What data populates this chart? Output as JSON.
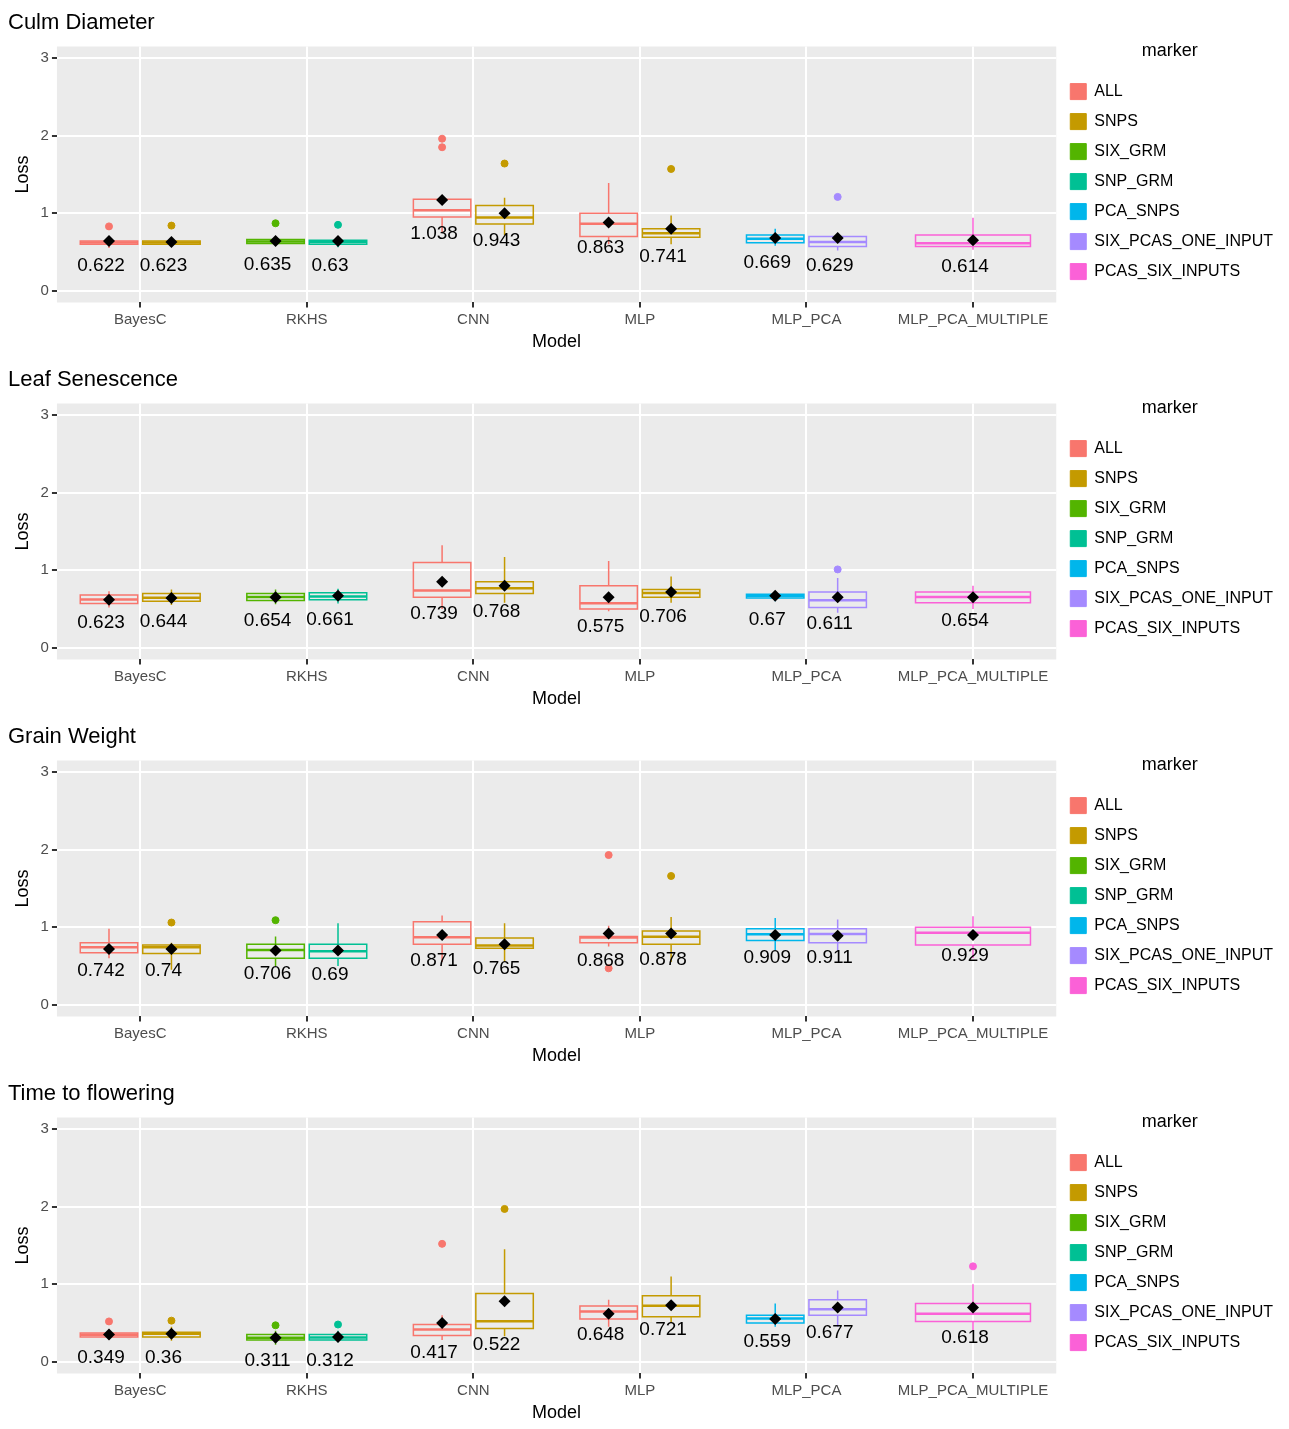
{
  "chart_data": [
    {
      "type": "box",
      "title": "Culm Diameter",
      "xlabel": "Model",
      "ylabel": "Loss",
      "legend_title": "marker",
      "legend": "right",
      "grid": true,
      "ylim": [
        -0.15,
        3.15
      ],
      "yticks": [
        0,
        1,
        2,
        3
      ],
      "categories": [
        "BayesC",
        "RKHS",
        "CNN",
        "MLP",
        "MLP_PCA",
        "MLP_PCA_MULTIPLE"
      ],
      "series": [
        {
          "name": "ALL",
          "color": "#f8766d",
          "boxes": [
            {
              "low": 0.55,
              "q1": 0.6,
              "median": 0.622,
              "q3": 0.64,
              "high": 0.67,
              "mean": 0.64,
              "outliers": [
                0.83
              ]
            },
            null,
            {
              "low": 0.75,
              "q1": 0.95,
              "median": 1.038,
              "q3": 1.18,
              "high": 1.2,
              "mean": 1.17,
              "outliers": [
                1.96,
                1.85
              ]
            },
            {
              "low": 0.6,
              "q1": 0.7,
              "median": 0.863,
              "q3": 1.0,
              "high": 1.39,
              "mean": 0.88
            },
            null,
            null
          ],
          "value_labels": [
            "0.622",
            null,
            "1.038",
            "0.863",
            null,
            null
          ]
        },
        {
          "name": "SNPS",
          "color": "#c49a00",
          "boxes": [
            {
              "low": 0.57,
              "q1": 0.6,
              "median": 0.623,
              "q3": 0.64,
              "high": 0.66,
              "mean": 0.63,
              "outliers": [
                0.84
              ]
            },
            null,
            {
              "low": 0.72,
              "q1": 0.86,
              "median": 0.943,
              "q3": 1.1,
              "high": 1.2,
              "mean": 1.0,
              "outliers": [
                1.64
              ]
            },
            {
              "low": 0.6,
              "q1": 0.69,
              "median": 0.741,
              "q3": 0.8,
              "high": 0.97,
              "mean": 0.8,
              "outliers": [
                1.57
              ]
            },
            null,
            null
          ],
          "value_labels": [
            "0.623",
            null,
            "0.943",
            "0.741",
            null,
            null
          ]
        },
        {
          "name": "SIX_GRM",
          "color": "#53b400",
          "boxes": [
            null,
            {
              "low": 0.58,
              "q1": 0.61,
              "median": 0.635,
              "q3": 0.66,
              "high": 0.69,
              "mean": 0.64,
              "outliers": [
                0.87
              ]
            },
            null,
            null,
            null,
            null
          ],
          "value_labels": [
            null,
            "0.635",
            null,
            null,
            null,
            null
          ]
        },
        {
          "name": "SNP_GRM",
          "color": "#00c094",
          "boxes": [
            null,
            {
              "low": 0.56,
              "q1": 0.6,
              "median": 0.63,
              "q3": 0.65,
              "high": 0.68,
              "mean": 0.64,
              "outliers": [
                0.85
              ]
            },
            null,
            null,
            null,
            null
          ],
          "value_labels": [
            null,
            "0.63",
            null,
            null,
            null,
            null
          ]
        },
        {
          "name": "PCA_SNPS",
          "color": "#00b6eb",
          "boxes": [
            null,
            null,
            null,
            null,
            {
              "low": 0.58,
              "q1": 0.62,
              "median": 0.669,
              "q3": 0.72,
              "high": 0.8,
              "mean": 0.68
            },
            null
          ],
          "value_labels": [
            null,
            null,
            null,
            null,
            "0.669",
            null
          ]
        },
        {
          "name": "SIX_PCAS_ONE_INPUT",
          "color": "#a58aff",
          "boxes": [
            null,
            null,
            null,
            null,
            {
              "low": 0.52,
              "q1": 0.57,
              "median": 0.629,
              "q3": 0.7,
              "high": 0.74,
              "mean": 0.68,
              "outliers": [
                1.21
              ]
            },
            null
          ],
          "value_labels": [
            null,
            null,
            null,
            null,
            "0.629",
            null
          ]
        },
        {
          "name": "PCAS_SIX_INPUTS",
          "color": "#fb61d7",
          "boxes": [
            null,
            null,
            null,
            null,
            null,
            {
              "low": 0.53,
              "q1": 0.57,
              "median": 0.614,
              "q3": 0.72,
              "high": 0.94,
              "mean": 0.65
            }
          ],
          "value_labels": [
            null,
            null,
            null,
            null,
            null,
            "0.614"
          ]
        }
      ]
    },
    {
      "type": "box",
      "title": "Leaf Senescence",
      "xlabel": "Model",
      "ylabel": "Loss",
      "legend_title": "marker",
      "legend": "right",
      "grid": true,
      "ylim": [
        -0.15,
        3.15
      ],
      "yticks": [
        0,
        1,
        2,
        3
      ],
      "categories": [
        "BayesC",
        "RKHS",
        "CNN",
        "MLP",
        "MLP_PCA",
        "MLP_PCA_MULTIPLE"
      ],
      "series": [
        {
          "name": "ALL",
          "color": "#f8766d",
          "boxes": [
            {
              "low": 0.52,
              "q1": 0.57,
              "median": 0.623,
              "q3": 0.68,
              "high": 0.73,
              "mean": 0.62
            },
            null,
            {
              "low": 0.5,
              "q1": 0.65,
              "median": 0.739,
              "q3": 1.1,
              "high": 1.32,
              "mean": 0.85
            },
            {
              "low": 0.47,
              "q1": 0.5,
              "median": 0.575,
              "q3": 0.8,
              "high": 1.12,
              "mean": 0.65
            },
            null,
            null
          ],
          "value_labels": [
            "0.623",
            null,
            "0.739",
            "0.575",
            null,
            null
          ]
        },
        {
          "name": "SNPS",
          "color": "#c49a00",
          "boxes": [
            {
              "low": 0.55,
              "q1": 0.6,
              "median": 0.644,
              "q3": 0.7,
              "high": 0.75,
              "mean": 0.64
            },
            null,
            {
              "low": 0.58,
              "q1": 0.7,
              "median": 0.768,
              "q3": 0.85,
              "high": 1.17,
              "mean": 0.8
            },
            {
              "low": 0.58,
              "q1": 0.65,
              "median": 0.706,
              "q3": 0.75,
              "high": 0.92,
              "mean": 0.72
            },
            null,
            null
          ],
          "value_labels": [
            "0.644",
            null,
            "0.768",
            "0.706",
            null,
            null
          ]
        },
        {
          "name": "SIX_GRM",
          "color": "#53b400",
          "boxes": [
            null,
            {
              "low": 0.56,
              "q1": 0.61,
              "median": 0.654,
              "q3": 0.7,
              "high": 0.75,
              "mean": 0.65
            },
            null,
            null,
            null,
            null
          ],
          "value_labels": [
            null,
            "0.654",
            null,
            null,
            null,
            null
          ]
        },
        {
          "name": "SNP_GRM",
          "color": "#00c094",
          "boxes": [
            null,
            {
              "low": 0.57,
              "q1": 0.62,
              "median": 0.661,
              "q3": 0.71,
              "high": 0.76,
              "mean": 0.67
            },
            null,
            null,
            null,
            null
          ],
          "value_labels": [
            null,
            "0.661",
            null,
            null,
            null,
            null
          ]
        },
        {
          "name": "PCA_SNPS",
          "color": "#00b6eb",
          "boxes": [
            null,
            null,
            null,
            null,
            {
              "low": 0.6,
              "q1": 0.64,
              "median": 0.67,
              "q3": 0.69,
              "high": 0.73,
              "mean": 0.67
            },
            null
          ],
          "value_labels": [
            null,
            null,
            null,
            null,
            "0.67",
            null
          ]
        },
        {
          "name": "SIX_PCAS_ONE_INPUT",
          "color": "#a58aff",
          "boxes": [
            null,
            null,
            null,
            null,
            {
              "low": 0.45,
              "q1": 0.52,
              "median": 0.611,
              "q3": 0.72,
              "high": 0.9,
              "mean": 0.65,
              "outliers": [
                1.01
              ]
            },
            null
          ],
          "value_labels": [
            null,
            null,
            null,
            null,
            "0.611",
            null
          ]
        },
        {
          "name": "PCAS_SIX_INPUTS",
          "color": "#fb61d7",
          "boxes": [
            null,
            null,
            null,
            null,
            null,
            {
              "low": 0.5,
              "q1": 0.58,
              "median": 0.654,
              "q3": 0.72,
              "high": 0.8,
              "mean": 0.65
            }
          ],
          "value_labels": [
            null,
            null,
            null,
            null,
            null,
            "0.654"
          ]
        }
      ]
    },
    {
      "type": "box",
      "title": "Grain Weight",
      "xlabel": "Model",
      "ylabel": "Loss",
      "legend_title": "marker",
      "legend": "right",
      "grid": true,
      "ylim": [
        -0.15,
        3.15
      ],
      "yticks": [
        0,
        1,
        2,
        3
      ],
      "categories": [
        "BayesC",
        "RKHS",
        "CNN",
        "MLP",
        "MLP_PCA",
        "MLP_PCA_MULTIPLE"
      ],
      "series": [
        {
          "name": "ALL",
          "color": "#f8766d",
          "boxes": [
            {
              "low": 0.6,
              "q1": 0.67,
              "median": 0.742,
              "q3": 0.8,
              "high": 0.98,
              "mean": 0.72
            },
            null,
            {
              "low": 0.55,
              "q1": 0.78,
              "median": 0.871,
              "q3": 1.07,
              "high": 1.15,
              "mean": 0.9
            },
            {
              "low": 0.75,
              "q1": 0.8,
              "median": 0.868,
              "q3": 0.88,
              "high": 1.02,
              "mean": 0.92,
              "outliers": [
                1.93,
                0.47
              ]
            },
            null,
            null
          ],
          "value_labels": [
            "0.742",
            null,
            "0.871",
            "0.868",
            null,
            null
          ]
        },
        {
          "name": "SNPS",
          "color": "#c49a00",
          "boxes": [
            {
              "low": 0.45,
              "q1": 0.66,
              "median": 0.74,
              "q3": 0.77,
              "high": 0.8,
              "mean": 0.72,
              "outliers": [
                1.06
              ]
            },
            null,
            {
              "low": 0.55,
              "q1": 0.73,
              "median": 0.765,
              "q3": 0.86,
              "high": 1.05,
              "mean": 0.78
            },
            {
              "low": 0.55,
              "q1": 0.78,
              "median": 0.878,
              "q3": 0.95,
              "high": 1.13,
              "mean": 0.92,
              "outliers": [
                1.66
              ]
            },
            null,
            null
          ],
          "value_labels": [
            "0.74",
            null,
            "0.765",
            "0.878",
            null,
            null
          ]
        },
        {
          "name": "SIX_GRM",
          "color": "#53b400",
          "boxes": [
            null,
            {
              "low": 0.5,
              "q1": 0.6,
              "median": 0.706,
              "q3": 0.78,
              "high": 0.88,
              "mean": 0.7,
              "outliers": [
                1.09
              ]
            },
            null,
            null,
            null,
            null
          ],
          "value_labels": [
            null,
            "0.706",
            null,
            null,
            null,
            null
          ]
        },
        {
          "name": "SNP_GRM",
          "color": "#00c094",
          "boxes": [
            null,
            {
              "low": 0.5,
              "q1": 0.6,
              "median": 0.69,
              "q3": 0.78,
              "high": 1.05,
              "mean": 0.7
            },
            null,
            null,
            null,
            null
          ],
          "value_labels": [
            null,
            "0.69",
            null,
            null,
            null,
            null
          ]
        },
        {
          "name": "PCA_SNPS",
          "color": "#00b6eb",
          "boxes": [
            null,
            null,
            null,
            null,
            {
              "low": 0.7,
              "q1": 0.83,
              "median": 0.909,
              "q3": 0.98,
              "high": 1.12,
              "mean": 0.9
            },
            null
          ],
          "value_labels": [
            null,
            null,
            null,
            null,
            "0.909",
            null
          ]
        },
        {
          "name": "SIX_PCAS_ONE_INPUT",
          "color": "#a58aff",
          "boxes": [
            null,
            null,
            null,
            null,
            {
              "low": 0.7,
              "q1": 0.8,
              "median": 0.911,
              "q3": 0.98,
              "high": 1.1,
              "mean": 0.89
            },
            null
          ],
          "value_labels": [
            null,
            null,
            null,
            null,
            "0.911",
            null
          ]
        },
        {
          "name": "PCAS_SIX_INPUTS",
          "color": "#fb61d7",
          "boxes": [
            null,
            null,
            null,
            null,
            null,
            {
              "low": 0.6,
              "q1": 0.77,
              "median": 0.929,
              "q3": 1.0,
              "high": 1.14,
              "mean": 0.9
            }
          ],
          "value_labels": [
            null,
            null,
            null,
            null,
            null,
            "0.929"
          ]
        }
      ]
    },
    {
      "type": "box",
      "title": "Time to flowering",
      "xlabel": "Model",
      "ylabel": "Loss",
      "legend_title": "marker",
      "legend": "right",
      "grid": true,
      "ylim": [
        -0.15,
        3.15
      ],
      "yticks": [
        0,
        1,
        2,
        3
      ],
      "categories": [
        "BayesC",
        "RKHS",
        "CNN",
        "MLP",
        "MLP_PCA",
        "MLP_PCA_MULTIPLE"
      ],
      "series": [
        {
          "name": "ALL",
          "color": "#f8766d",
          "boxes": [
            {
              "low": 0.28,
              "q1": 0.32,
              "median": 0.349,
              "q3": 0.37,
              "high": 0.42,
              "mean": 0.35,
              "outliers": [
                0.52
              ]
            },
            null,
            {
              "low": 0.28,
              "q1": 0.34,
              "median": 0.417,
              "q3": 0.48,
              "high": 0.6,
              "mean": 0.5,
              "outliers": [
                1.52
              ]
            },
            {
              "low": 0.45,
              "q1": 0.55,
              "median": 0.648,
              "q3": 0.72,
              "high": 0.8,
              "mean": 0.62
            },
            null,
            null
          ],
          "value_labels": [
            "0.349",
            null,
            "0.417",
            "0.648",
            null,
            null
          ]
        },
        {
          "name": "SNPS",
          "color": "#c49a00",
          "boxes": [
            {
              "low": 0.27,
              "q1": 0.32,
              "median": 0.36,
              "q3": 0.38,
              "high": 0.45,
              "mean": 0.36,
              "outliers": [
                0.53
              ]
            },
            null,
            {
              "low": 0.33,
              "q1": 0.43,
              "median": 0.522,
              "q3": 0.88,
              "high": 1.45,
              "mean": 0.78,
              "outliers": [
                1.97
              ]
            },
            {
              "low": 0.5,
              "q1": 0.58,
              "median": 0.721,
              "q3": 0.85,
              "high": 1.1,
              "mean": 0.73
            },
            null,
            null
          ],
          "value_labels": [
            "0.36",
            null,
            "0.522",
            "0.721",
            null,
            null
          ]
        },
        {
          "name": "SIX_GRM",
          "color": "#53b400",
          "boxes": [
            null,
            {
              "low": 0.22,
              "q1": 0.28,
              "median": 0.311,
              "q3": 0.35,
              "high": 0.4,
              "mean": 0.31,
              "outliers": [
                0.47
              ]
            },
            null,
            null,
            null,
            null
          ],
          "value_labels": [
            null,
            "0.311",
            null,
            null,
            null,
            null
          ]
        },
        {
          "name": "SNP_GRM",
          "color": "#00c094",
          "boxes": [
            null,
            {
              "low": 0.25,
              "q1": 0.28,
              "median": 0.312,
              "q3": 0.35,
              "high": 0.4,
              "mean": 0.32,
              "outliers": [
                0.48
              ]
            },
            null,
            null,
            null,
            null
          ],
          "value_labels": [
            null,
            "0.312",
            null,
            null,
            null,
            null
          ]
        },
        {
          "name": "PCA_SNPS",
          "color": "#00b6eb",
          "boxes": [
            null,
            null,
            null,
            null,
            {
              "low": 0.45,
              "q1": 0.5,
              "median": 0.559,
              "q3": 0.6,
              "high": 0.75,
              "mean": 0.55
            },
            null
          ],
          "value_labels": [
            null,
            null,
            null,
            null,
            "0.559",
            null
          ]
        },
        {
          "name": "SIX_PCAS_ONE_INPUT",
          "color": "#a58aff",
          "boxes": [
            null,
            null,
            null,
            null,
            {
              "low": 0.45,
              "q1": 0.6,
              "median": 0.677,
              "q3": 0.8,
              "high": 0.92,
              "mean": 0.7
            },
            null
          ],
          "value_labels": [
            null,
            null,
            null,
            null,
            "0.677",
            null
          ]
        },
        {
          "name": "PCAS_SIX_INPUTS",
          "color": "#fb61d7",
          "boxes": [
            null,
            null,
            null,
            null,
            null,
            {
              "low": 0.4,
              "q1": 0.52,
              "median": 0.618,
              "q3": 0.75,
              "high": 1.0,
              "mean": 0.7,
              "outliers": [
                1.23
              ]
            }
          ],
          "value_labels": [
            null,
            null,
            null,
            null,
            null,
            "0.618"
          ]
        }
      ]
    }
  ]
}
